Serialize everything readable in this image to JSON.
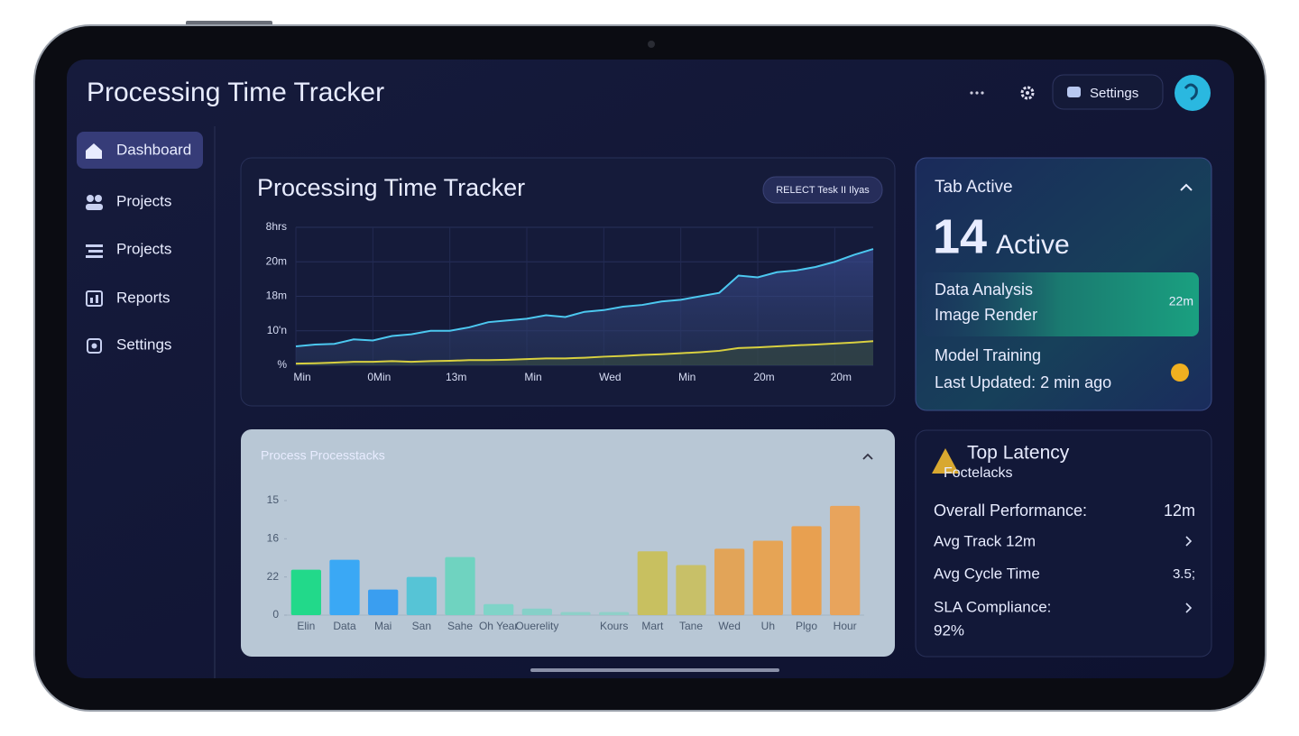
{
  "header": {
    "title": "Processing Time Tracker",
    "settings_button": "Settings"
  },
  "sidebar": {
    "items": [
      "Dashboard",
      "Projects",
      "Projects",
      "Reports",
      "Settings"
    ]
  },
  "active_panel": {
    "title": "Tab Active",
    "count": 14,
    "count_label": "Active",
    "tasks": [
      {
        "name": "Data Analysis",
        "detail": "Image Render",
        "time": "22m"
      },
      {
        "name": "Model Training",
        "detail": "Last Updated: 2 min ago"
      }
    ]
  },
  "latency_panel": {
    "title": "Top Latency",
    "subtitle": "Foctelacks",
    "rows": [
      {
        "label": "Overall Performance:",
        "value": "12m"
      },
      {
        "label": "Avg Track 12m"
      },
      {
        "label": "Avg Cycle Time",
        "value": "3.5;"
      },
      {
        "label": "SLA Compliance:",
        "value": "92%"
      }
    ]
  },
  "chart_data": [
    {
      "type": "line",
      "title": "Processing Time Tracker",
      "button": "RELECT Tesk II Ilyas",
      "x": [
        0,
        1,
        2,
        3,
        4,
        5,
        6,
        7,
        8,
        9,
        10,
        11,
        12,
        13,
        14,
        15,
        16,
        17,
        18,
        19,
        20,
        21,
        22,
        23,
        24,
        25,
        26,
        27,
        28,
        29,
        30
      ],
      "xlim": [
        0,
        30
      ],
      "xticks": [
        {
          "value": 0,
          "label": "Min"
        },
        {
          "value": 4,
          "label": "0Min"
        },
        {
          "value": 8,
          "label": "13m"
        },
        {
          "value": 12,
          "label": "Min"
        },
        {
          "value": 16,
          "label": "Wed"
        },
        {
          "value": 20,
          "label": "Min"
        },
        {
          "value": 24,
          "label": "20m"
        },
        {
          "value": 28,
          "label": "20m"
        }
      ],
      "ylim": [
        0,
        4
      ],
      "yticks": [
        {
          "value": 0,
          "label": "%"
        },
        {
          "value": 1,
          "label": "10'n"
        },
        {
          "value": 2,
          "label": "18m"
        },
        {
          "value": 3,
          "label": "20m"
        },
        {
          "value": 4,
          "label": "8hrs"
        }
      ],
      "grid": true,
      "series": [
        {
          "color": "#4cc8f0",
          "values": [
            0.55,
            0.6,
            0.62,
            0.75,
            0.72,
            0.85,
            0.9,
            1.0,
            1.0,
            1.1,
            1.25,
            1.3,
            1.35,
            1.45,
            1.4,
            1.55,
            1.6,
            1.7,
            1.75,
            1.85,
            1.9,
            2.0,
            2.1,
            2.6,
            2.55,
            2.7,
            2.75,
            2.85,
            3.0,
            3.2,
            3.37
          ]
        },
        {
          "color": "#d8d040",
          "values": [
            0.05,
            0.06,
            0.08,
            0.1,
            0.1,
            0.12,
            0.1,
            0.12,
            0.13,
            0.15,
            0.15,
            0.16,
            0.18,
            0.2,
            0.2,
            0.22,
            0.25,
            0.27,
            0.3,
            0.32,
            0.35,
            0.38,
            0.42,
            0.5,
            0.52,
            0.55,
            0.58,
            0.6,
            0.63,
            0.66,
            0.7
          ]
        }
      ]
    },
    {
      "type": "bar",
      "title": "Process Processtacks",
      "categories": [
        "Elin",
        "Data",
        "Mai",
        "San",
        "Sahe",
        "Oh Year",
        "Ouerelity",
        null,
        "Kours",
        "Mart",
        "Tane",
        "Wed",
        "Uh",
        "Plgo",
        "Hour"
      ],
      "values": [
        1.19,
        1.45,
        0.67,
        1.0,
        1.52,
        0.29,
        0.17,
        0.08,
        0.08,
        1.67,
        1.31,
        1.74,
        1.95,
        2.33,
        2.86
      ],
      "colors": [
        "#22d98a",
        "#3aa8f5",
        "#3a9ef0",
        "#56c4d6",
        "#6fd3c0",
        "#7fd4c8",
        "#86d0c8",
        "#8dd0c8",
        "#8fd0c8",
        "#c8c060",
        "#c8c068",
        "#e2a458",
        "#e6a455",
        "#e8a050",
        "#e8a45c"
      ],
      "ylim": [
        0,
        3
      ],
      "yticks": [
        0,
        {
          "value": 1,
          "label": "22"
        },
        {
          "value": 2,
          "label": "16"
        },
        {
          "value": 3,
          "label": "15"
        }
      ],
      "grid": false
    }
  ]
}
